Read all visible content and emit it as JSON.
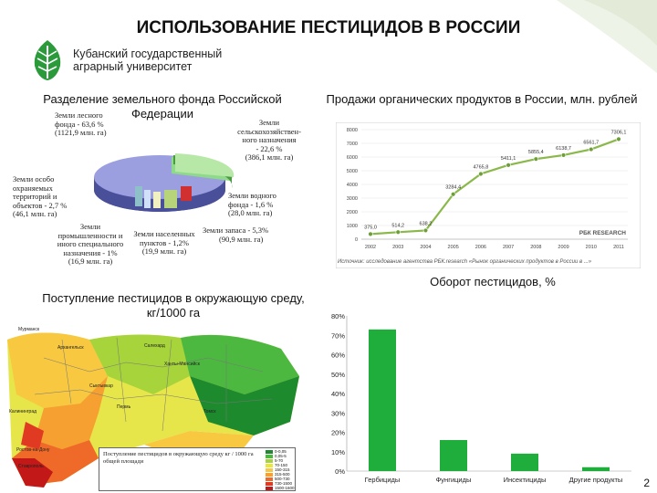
{
  "title": "ИСПОЛЬЗОВАНИЕ ПЕСТИЦИДОВ В РОССИИ",
  "logo": {
    "line1": "Кубанский государственный",
    "line2": "аграрный университет"
  },
  "land_fund": {
    "title_l1": "Разделение земельного фонда Российской",
    "title_l2": "Федерации",
    "labels": {
      "forest": [
        "Земли лесного",
        "фонда - 63,6 %",
        "(1121,9 млн. га)"
      ],
      "agri": [
        "Земли",
        "сельскохозяйствен-",
        "ного назначения",
        "- 22,6 %",
        "(386,1 млн. га)"
      ],
      "water": [
        "Земли водного",
        "фонда - 1,6 %",
        "(28,0 млн. га)"
      ],
      "reserve": [
        "Земли запаса - 5,3%",
        "(90,9 млн. га)"
      ],
      "settlements": [
        "Земли населенных",
        "пунктов - 1,2%",
        "(19,9 млн. га)"
      ],
      "industry": [
        "Земли",
        "промышленности и",
        "иного специального",
        "назначения - 1%",
        "(16,9 млн. га)"
      ],
      "protected": [
        "Земли особо",
        "охраняемых",
        "территорий и",
        "объектов - 2,7 %",
        "(46,1 млн. га)"
      ]
    }
  },
  "organic": {
    "title": "Продажи органических продуктов в России, млн. рублей",
    "brand": "РБК RESEARCH",
    "note": "Источник: исследование агентства РБК.research «Рынок органических продуктов в России в ...»",
    "chart_data": {
      "type": "line",
      "x": [
        "2002",
        "2003",
        "2004",
        "2005",
        "2006",
        "2007",
        "2008",
        "2009",
        "2010",
        "2011"
      ],
      "series": [
        {
          "values": [
            375.0,
            514.2,
            638.2,
            3284.4,
            4765.8,
            5411.1,
            5855.4,
            6138.7,
            6561.7,
            7306.1
          ]
        }
      ],
      "value_labels": [
        "375,0",
        "514,2",
        "638,2",
        "3284,4",
        "4765,8",
        "5411,1",
        "5855,4",
        "6138,7",
        "6561,7",
        "7306,1"
      ],
      "y_ticks": [
        "0",
        "1000",
        "2000",
        "3000",
        "4000",
        "5000",
        "6000",
        "7000",
        "8000"
      ],
      "ylim": [
        0,
        8000
      ]
    }
  },
  "turnover": {
    "title": "Оборот пестицидов, %",
    "chart_data": {
      "type": "bar",
      "categories": [
        "Гербициды",
        "Фунгициды",
        "Инсектициды",
        "Другие продукты"
      ],
      "values": [
        73,
        16,
        9,
        2
      ],
      "y_ticks": [
        "0%",
        "10%",
        "20%",
        "30%",
        "40%",
        "50%",
        "60%",
        "70%",
        "80%"
      ],
      "ylim": [
        0,
        80
      ],
      "color": "#1fae3c"
    }
  },
  "pesticide_map": {
    "title_l1": "Поступление пестицидов в окружающую среду,",
    "title_l2": "кг/1000 га",
    "legend_title": "Поступление пестицидов в окружающую среду кг / 1000 га общей площади",
    "legend_items": [
      "0-0,05",
      "0,05-5",
      "5-70",
      "70-150",
      "150-315",
      "315-500",
      "500-730",
      "730-1500",
      "1500-1600"
    ],
    "legend_colors": [
      "#1e8a2e",
      "#4cb840",
      "#a6d43a",
      "#e6e64a",
      "#f7c840",
      "#f5a030",
      "#ef6a28",
      "#e03a22",
      "#c21818"
    ],
    "cities": [
      "Мурманск",
      "Калининград",
      "Архангельск",
      "Сыктывкар",
      "Салехард",
      "Ханты-Мансийск",
      "Ростов-на-Дону",
      "Ставрополь",
      "Пермь",
      "Томск"
    ]
  },
  "slide_number": "2"
}
